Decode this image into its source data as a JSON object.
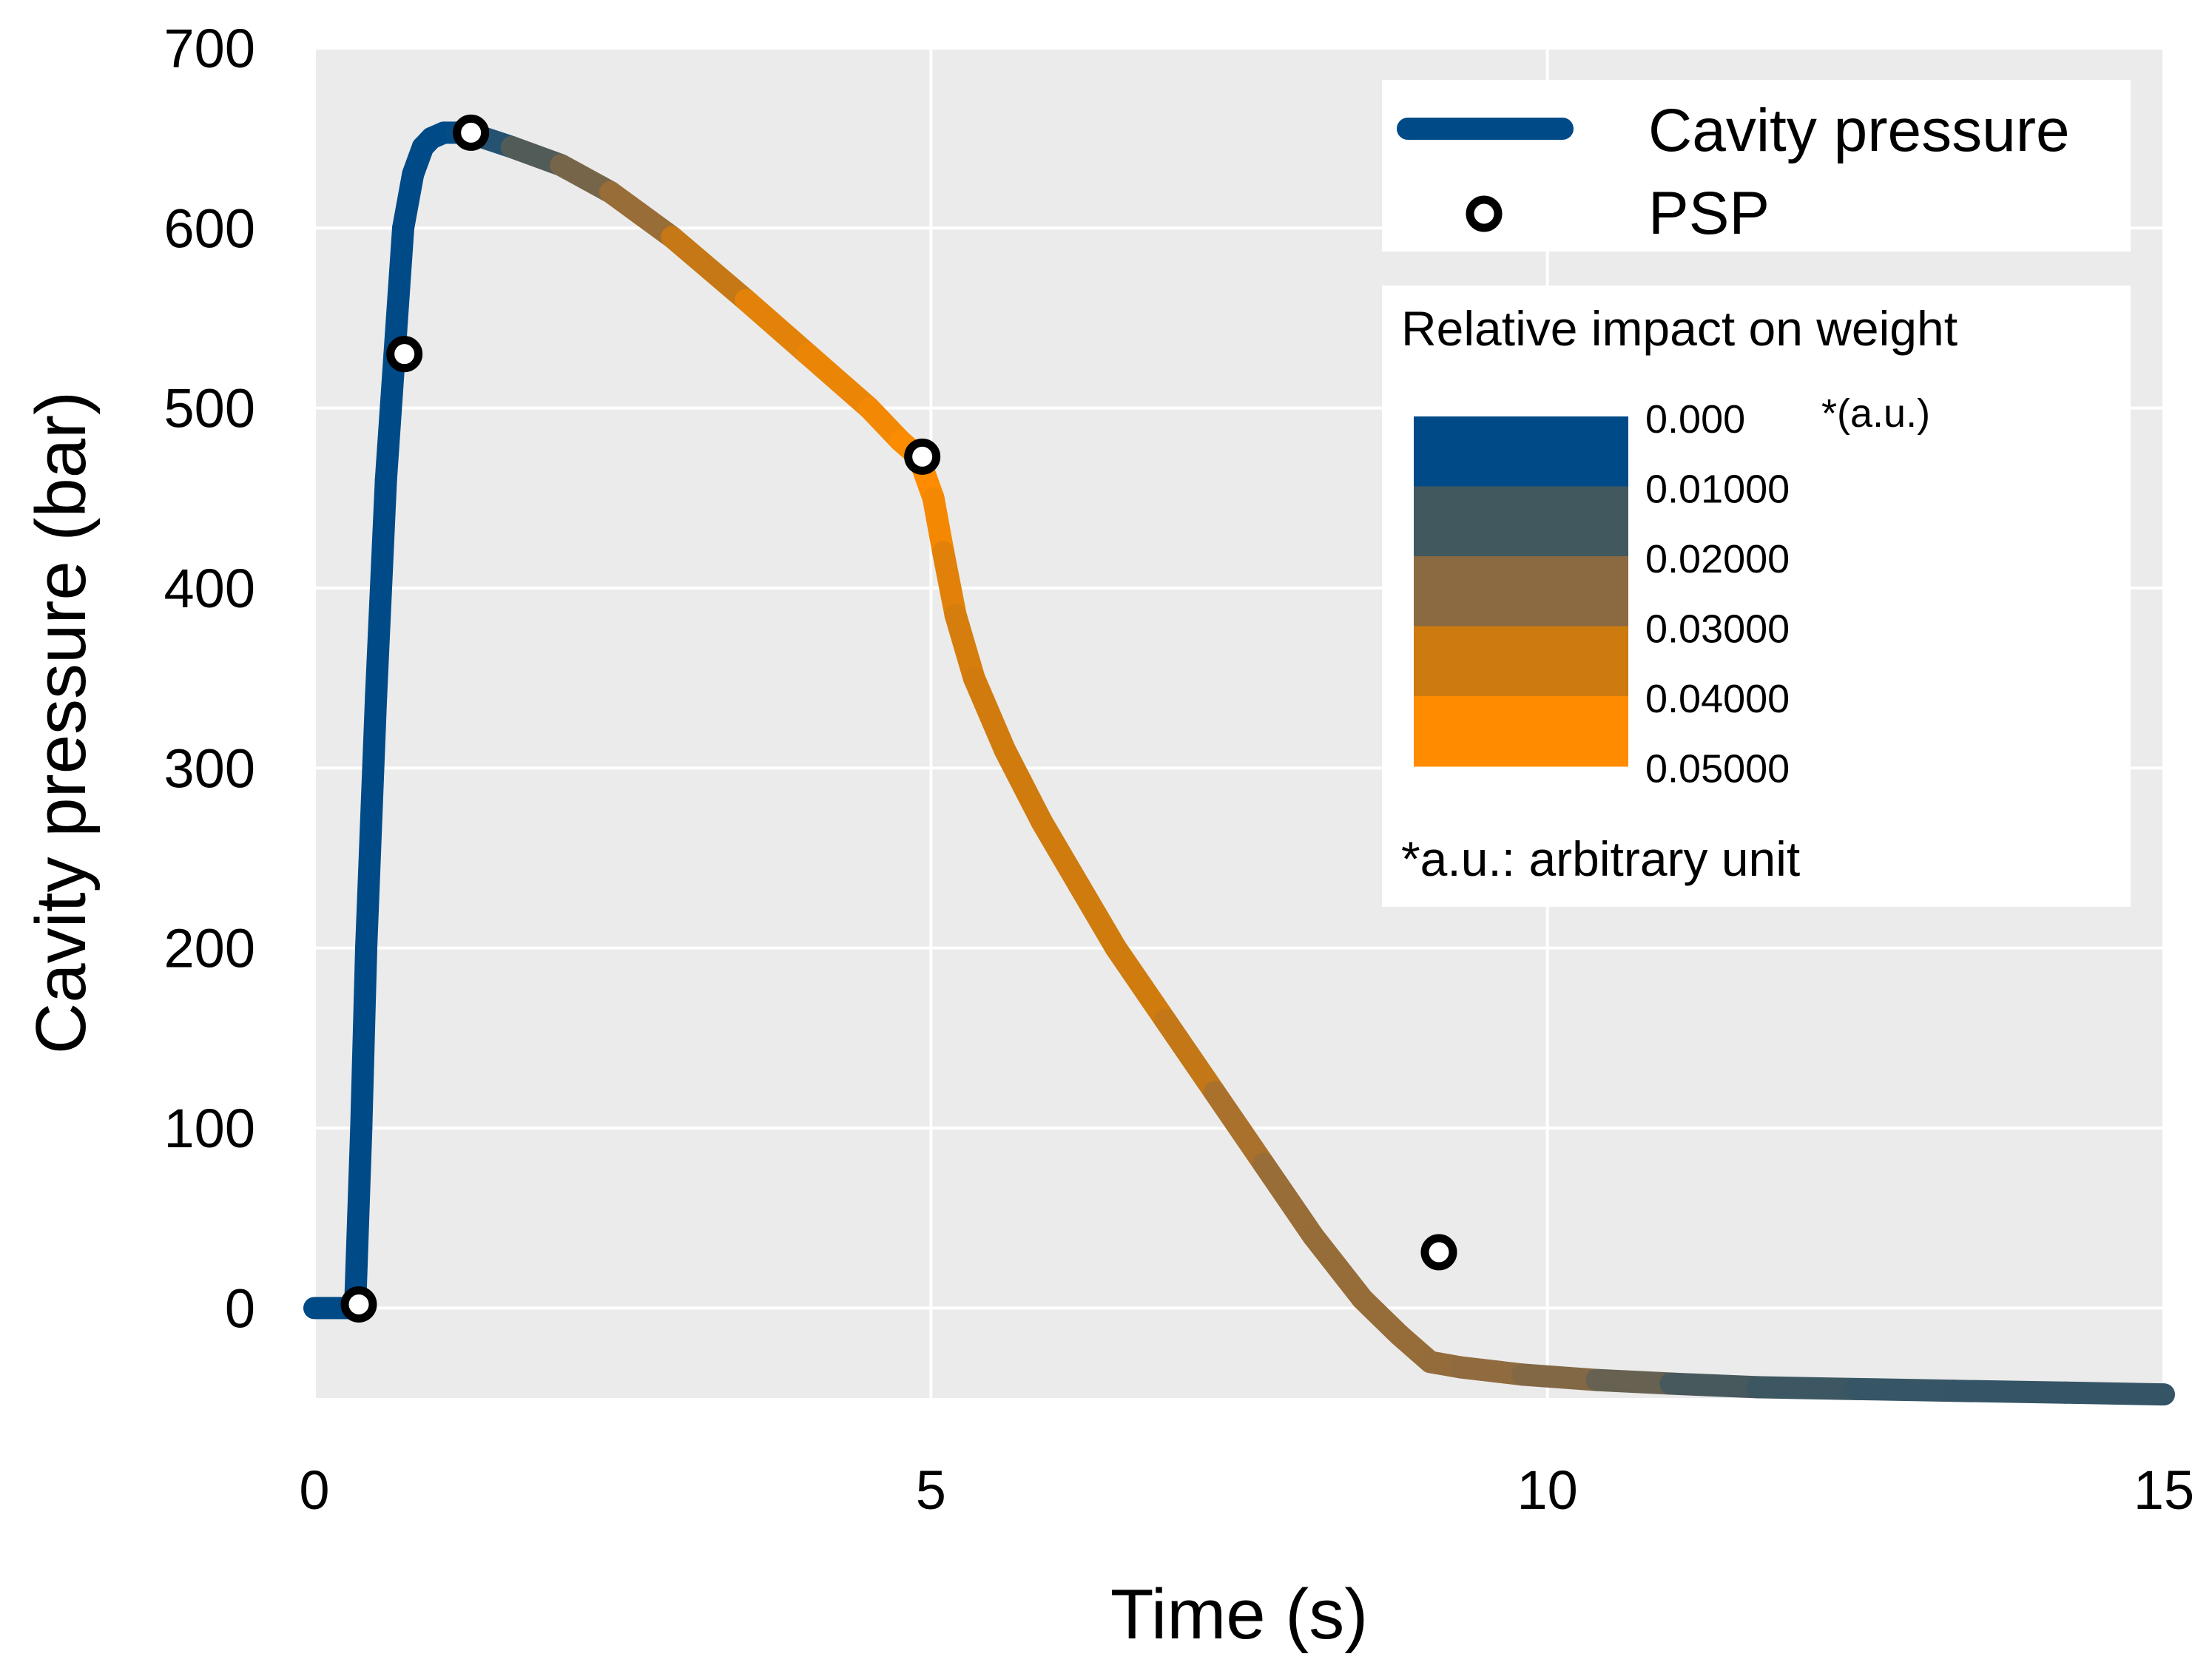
{
  "chart_data": {
    "type": "line",
    "xlabel": "Time (s)",
    "ylabel": "Cavity pressure (bar)",
    "xlim": [
      0,
      15
    ],
    "ylim": [
      -50,
      700
    ],
    "xticks": [
      "0",
      "5",
      "10",
      "15"
    ],
    "yticks": [
      "0",
      "100",
      "200",
      "300",
      "400",
      "500",
      "600",
      "700"
    ],
    "grid": true,
    "series": [
      {
        "name": "Cavity pressure",
        "color_scale_key": "Relative impact on weight",
        "x": [
          0.0,
          0.25,
          0.33,
          0.38,
          0.42,
          0.5,
          0.58,
          0.65,
          0.72,
          0.8,
          0.88,
          0.95,
          1.05,
          1.15,
          1.25,
          1.6,
          2.0,
          2.4,
          2.9,
          3.5,
          4.0,
          4.5,
          4.75,
          4.9,
          5.02,
          5.1,
          5.2,
          5.35,
          5.6,
          5.9,
          6.2,
          6.5,
          6.9,
          7.3,
          7.7,
          8.1,
          8.5,
          8.8,
          9.05,
          9.3,
          9.8,
          10.4,
          11.0,
          11.7,
          12.5,
          13.3,
          14.2,
          15.0
        ],
        "y": [
          0,
          0,
          0,
          100,
          200,
          340,
          460,
          530,
          600,
          630,
          645,
          650,
          653,
          653,
          653,
          645,
          635,
          620,
          595,
          560,
          530,
          500,
          482,
          473,
          450,
          420,
          385,
          350,
          310,
          270,
          235,
          200,
          160,
          120,
          80,
          40,
          5,
          -15,
          -30,
          -33,
          -37,
          -40,
          -42,
          -44,
          -45,
          -46,
          -47,
          -48
        ],
        "impact": [
          0.0,
          0.0,
          0.0,
          0.0,
          0.0,
          0.0,
          0.0,
          0.0,
          0.0,
          0.0,
          0.0,
          0.0,
          0.0,
          0.0,
          0.002,
          0.012,
          0.018,
          0.025,
          0.03,
          0.042,
          0.044,
          0.046,
          0.048,
          0.05,
          0.05,
          0.045,
          0.04,
          0.039,
          0.038,
          0.038,
          0.038,
          0.038,
          0.038,
          0.033,
          0.028,
          0.027,
          0.027,
          0.027,
          0.027,
          0.026,
          0.025,
          0.022,
          0.015,
          0.012,
          0.011,
          0.01,
          0.01,
          0.01
        ]
      }
    ],
    "psp_points": [
      {
        "x": 0.36,
        "y": 2
      },
      {
        "x": 0.73,
        "y": 530
      },
      {
        "x": 1.27,
        "y": 653
      },
      {
        "x": 4.93,
        "y": 473
      },
      {
        "x": 9.12,
        "y": 31
      }
    ],
    "legend": {
      "line_label": "Cavity pressure",
      "marker_label": "PSP",
      "placement": "top-right"
    },
    "colorbar": {
      "title": "Relative impact on weight",
      "unit_label": "*(a.u.)",
      "tick_labels": [
        "0.000",
        "0.01000",
        "0.02000",
        "0.03000",
        "0.04000",
        "0.05000"
      ],
      "colors": [
        "#004a87",
        "#42585f",
        "#8c6a41",
        "#cd7a0f",
        "#ff8c00"
      ],
      "footnote": "*a.u.: arbitrary unit"
    },
    "colors": {
      "plot_background": "#ebebeb",
      "grid": "#ffffff",
      "psp_fill": "#ffffff",
      "psp_stroke": "#000000"
    }
  }
}
